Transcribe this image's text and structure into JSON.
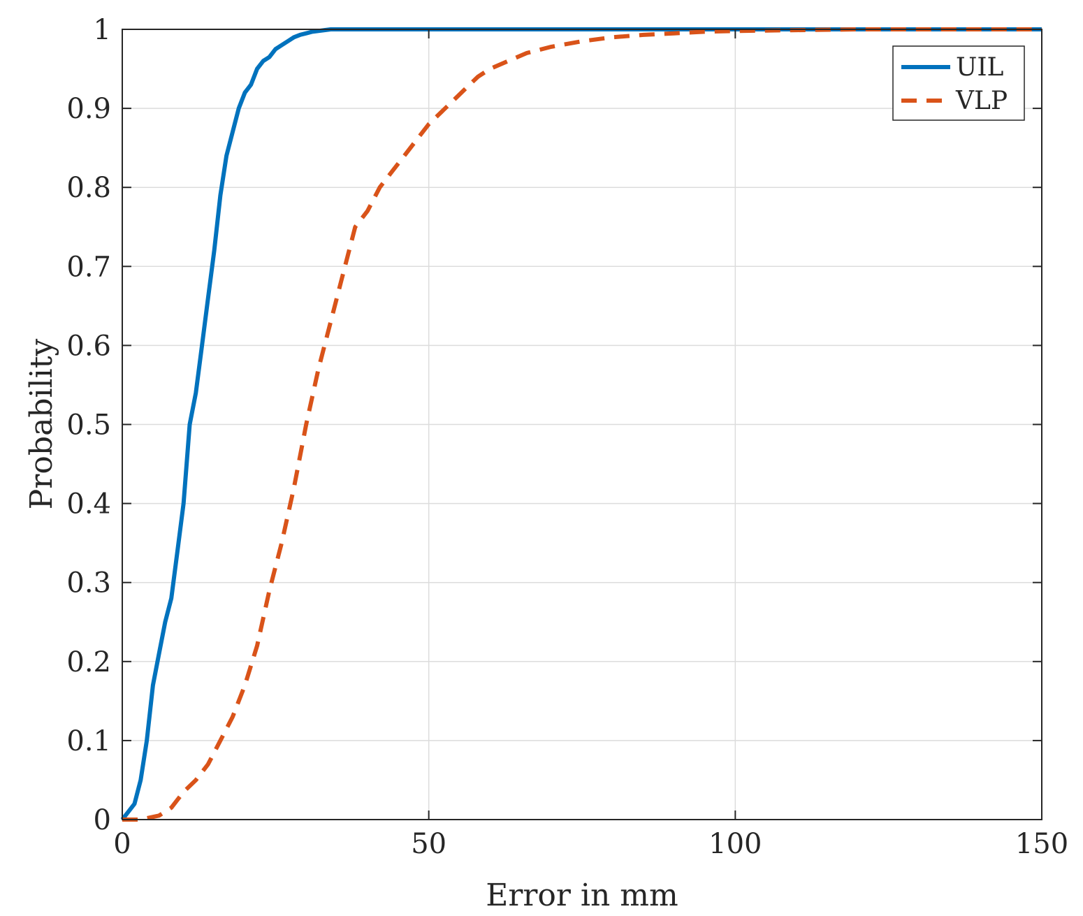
{
  "chart_data": {
    "type": "line",
    "title": "",
    "xlabel": "Error in mm",
    "ylabel": "Probability",
    "xlim": [
      0,
      150
    ],
    "ylim": [
      0,
      1
    ],
    "xticks": [
      "0",
      "50",
      "100",
      "150"
    ],
    "yticks": [
      "0",
      "0.1",
      "0.2",
      "0.3",
      "0.4",
      "0.5",
      "0.6",
      "0.7",
      "0.8",
      "0.9",
      "1"
    ],
    "grid": true,
    "legend_position": "top-right",
    "series": [
      {
        "name": "UIL",
        "color": "#0072BD",
        "style": "solid",
        "x": [
          0,
          1,
          2,
          3,
          4,
          5,
          6,
          7,
          8,
          9,
          10,
          11,
          12,
          13,
          14,
          15,
          16,
          17,
          18,
          19,
          20,
          21,
          22,
          23,
          24,
          25,
          26,
          27,
          28,
          29,
          30,
          31,
          32,
          33,
          34,
          35,
          37,
          40,
          45,
          150
        ],
        "y": [
          0,
          0.01,
          0.02,
          0.05,
          0.1,
          0.17,
          0.21,
          0.25,
          0.28,
          0.34,
          0.4,
          0.5,
          0.54,
          0.6,
          0.66,
          0.72,
          0.79,
          0.84,
          0.87,
          0.9,
          0.92,
          0.93,
          0.95,
          0.96,
          0.965,
          0.975,
          0.98,
          0.985,
          0.99,
          0.993,
          0.995,
          0.997,
          0.998,
          0.999,
          1,
          1,
          1,
          1,
          1,
          1
        ]
      },
      {
        "name": "VLP",
        "color": "#D95319",
        "style": "dashed",
        "x": [
          0,
          3,
          6,
          8,
          10,
          12,
          14,
          16,
          18,
          20,
          22,
          24,
          26,
          28,
          30,
          32,
          34,
          36,
          38,
          40,
          42,
          44,
          46,
          48,
          50,
          52,
          54,
          56,
          58,
          60,
          63,
          66,
          70,
          75,
          80,
          85,
          90,
          95,
          100,
          110,
          120,
          150
        ],
        "y": [
          0,
          0,
          0.005,
          0.015,
          0.035,
          0.05,
          0.07,
          0.1,
          0.13,
          0.17,
          0.22,
          0.29,
          0.35,
          0.42,
          0.5,
          0.57,
          0.63,
          0.69,
          0.75,
          0.77,
          0.8,
          0.82,
          0.84,
          0.86,
          0.88,
          0.895,
          0.91,
          0.925,
          0.94,
          0.95,
          0.96,
          0.97,
          0.978,
          0.985,
          0.99,
          0.993,
          0.995,
          0.997,
          0.998,
          0.999,
          1,
          1
        ]
      }
    ]
  }
}
